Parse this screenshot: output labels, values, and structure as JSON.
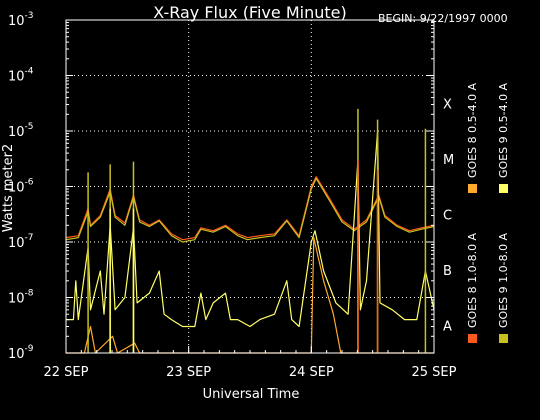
{
  "chart_data": {
    "type": "line",
    "title": "X-Ray Flux (Five Minute)",
    "begin_label": "BEGIN: 9/22/1997 0000",
    "xlabel": "Universal Time",
    "ylabel": "Watts meter2",
    "y_scale": "log",
    "ylim": [
      1e-09,
      0.001
    ],
    "x_range_days": [
      0,
      3
    ],
    "x_ticks": [
      {
        "day": 0,
        "label": "22 SEP"
      },
      {
        "day": 1,
        "label": "23 SEP"
      },
      {
        "day": 2,
        "label": "24 SEP"
      },
      {
        "day": 3,
        "label": "25 SEP"
      }
    ],
    "y_ticks": [
      {
        "exp": -9,
        "base": "10",
        "sup": "-9"
      },
      {
        "exp": -8,
        "base": "10",
        "sup": "-8"
      },
      {
        "exp": -7,
        "base": "10",
        "sup": "-7"
      },
      {
        "exp": -6,
        "base": "10",
        "sup": "-6"
      },
      {
        "exp": -5,
        "base": "10",
        "sup": "-5"
      },
      {
        "exp": -4,
        "base": "10",
        "sup": "-4"
      },
      {
        "exp": -3,
        "base": "10",
        "sup": "-3"
      }
    ],
    "flare_classes": [
      {
        "label": "A",
        "exp": -8.5
      },
      {
        "label": "B",
        "exp": -7.5
      },
      {
        "label": "C",
        "exp": -6.5
      },
      {
        "label": "M",
        "exp": -5.5
      },
      {
        "label": "X",
        "exp": -4.5
      }
    ],
    "grid": "dotted at 10^-8..10^-4 and at day boundaries",
    "legend_placement": "right, vertical",
    "series": [
      {
        "name": "GOES 8 1.0-8.0 A",
        "color": "#ff5a1e",
        "points": [
          [
            0.0,
            1.2e-07
          ],
          [
            0.1,
            1.3e-07
          ],
          [
            0.18,
            4e-07
          ],
          [
            0.2,
            2e-07
          ],
          [
            0.28,
            3e-07
          ],
          [
            0.36,
            9e-07
          ],
          [
            0.4,
            3e-07
          ],
          [
            0.48,
            2.2e-07
          ],
          [
            0.55,
            7e-07
          ],
          [
            0.6,
            2.5e-07
          ],
          [
            0.68,
            2e-07
          ],
          [
            0.76,
            2.5e-07
          ],
          [
            0.86,
            1.4e-07
          ],
          [
            0.95,
            1.1e-07
          ],
          [
            1.05,
            1.2e-07
          ],
          [
            1.1,
            1.8e-07
          ],
          [
            1.2,
            1.6e-07
          ],
          [
            1.3,
            2e-07
          ],
          [
            1.4,
            1.4e-07
          ],
          [
            1.48,
            1.2e-07
          ],
          [
            1.58,
            1.3e-07
          ],
          [
            1.7,
            1.4e-07
          ],
          [
            1.8,
            2.5e-07
          ],
          [
            1.9,
            1.3e-07
          ],
          [
            2.0,
            1e-06
          ],
          [
            2.04,
            1.5e-06
          ],
          [
            2.15,
            6e-07
          ],
          [
            2.25,
            2.5e-07
          ],
          [
            2.35,
            1.7e-07
          ],
          [
            2.45,
            2.5e-07
          ],
          [
            2.55,
            7e-07
          ],
          [
            2.6,
            3e-07
          ],
          [
            2.7,
            2e-07
          ],
          [
            2.8,
            1.6e-07
          ],
          [
            2.9,
            1.8e-07
          ],
          [
            3.0,
            2e-07
          ]
        ]
      },
      {
        "name": "GOES 8 0.5-4.0 A",
        "color": "#ffaa2a",
        "points": [
          [
            0.0,
            1e-09
          ],
          [
            0.15,
            1e-09
          ],
          [
            0.2,
            3e-09
          ],
          [
            0.24,
            1e-09
          ],
          [
            0.38,
            2e-09
          ],
          [
            0.42,
            1e-09
          ],
          [
            0.56,
            1.5e-09
          ],
          [
            0.6,
            1e-09
          ],
          [
            2.0,
            1e-09
          ],
          [
            2.02,
            1.2e-07
          ],
          [
            2.05,
            6e-08
          ],
          [
            2.1,
            2e-08
          ],
          [
            2.18,
            5e-09
          ],
          [
            2.24,
            1e-09
          ],
          [
            3.0,
            1e-09
          ]
        ]
      },
      {
        "name": "GOES 9 1.0-8.0 A",
        "color": "#c8c020",
        "points": [
          [
            0.0,
            1.1e-07
          ],
          [
            0.1,
            1.2e-07
          ],
          [
            0.18,
            3.5e-07
          ],
          [
            0.2,
            1.9e-07
          ],
          [
            0.28,
            2.8e-07
          ],
          [
            0.36,
            8e-07
          ],
          [
            0.4,
            2.8e-07
          ],
          [
            0.48,
            2e-07
          ],
          [
            0.55,
            6.5e-07
          ],
          [
            0.6,
            2.3e-07
          ],
          [
            0.68,
            1.9e-07
          ],
          [
            0.76,
            2.4e-07
          ],
          [
            0.86,
            1.3e-07
          ],
          [
            0.95,
            1e-07
          ],
          [
            1.05,
            1.1e-07
          ],
          [
            1.1,
            1.7e-07
          ],
          [
            1.2,
            1.5e-07
          ],
          [
            1.3,
            1.9e-07
          ],
          [
            1.4,
            1.3e-07
          ],
          [
            1.48,
            1.1e-07
          ],
          [
            1.58,
            1.2e-07
          ],
          [
            1.7,
            1.3e-07
          ],
          [
            1.8,
            2.4e-07
          ],
          [
            1.9,
            1.2e-07
          ],
          [
            2.0,
            9e-07
          ],
          [
            2.04,
            1.4e-06
          ],
          [
            2.15,
            5.5e-07
          ],
          [
            2.25,
            2.3e-07
          ],
          [
            2.35,
            1.6e-07
          ],
          [
            2.45,
            2.3e-07
          ],
          [
            2.55,
            6.5e-07
          ],
          [
            2.6,
            2.8e-07
          ],
          [
            2.7,
            1.9e-07
          ],
          [
            2.8,
            1.5e-07
          ],
          [
            2.9,
            1.7e-07
          ],
          [
            3.0,
            1.9e-07
          ]
        ]
      },
      {
        "name": "GOES 9 0.5-4.0 A",
        "color": "#ffff66",
        "points": [
          [
            0.0,
            4e-09
          ],
          [
            0.06,
            4e-09
          ],
          [
            0.08,
            2e-08
          ],
          [
            0.1,
            4e-09
          ],
          [
            0.18,
            8e-08
          ],
          [
            0.2,
            6e-09
          ],
          [
            0.28,
            3e-08
          ],
          [
            0.31,
            5e-09
          ],
          [
            0.36,
            2e-07
          ],
          [
            0.4,
            6e-09
          ],
          [
            0.48,
            1e-08
          ],
          [
            0.55,
            1.8e-07
          ],
          [
            0.58,
            8e-09
          ],
          [
            0.68,
            1.2e-08
          ],
          [
            0.76,
            3e-08
          ],
          [
            0.8,
            5e-09
          ],
          [
            0.86,
            4e-09
          ],
          [
            0.95,
            3e-09
          ],
          [
            1.05,
            3e-09
          ],
          [
            1.1,
            1.2e-08
          ],
          [
            1.14,
            4e-09
          ],
          [
            1.2,
            8e-09
          ],
          [
            1.3,
            1.2e-08
          ],
          [
            1.34,
            4e-09
          ],
          [
            1.4,
            4e-09
          ],
          [
            1.5,
            3e-09
          ],
          [
            1.58,
            4e-09
          ],
          [
            1.7,
            5e-09
          ],
          [
            1.8,
            2e-08
          ],
          [
            1.84,
            4e-09
          ],
          [
            1.9,
            3e-09
          ],
          [
            2.0,
            1e-07
          ],
          [
            2.03,
            1.6e-07
          ],
          [
            2.1,
            3e-08
          ],
          [
            2.2,
            8e-09
          ],
          [
            2.3,
            5e-09
          ],
          [
            2.38,
            3e-06
          ],
          [
            2.4,
            6e-09
          ],
          [
            2.45,
            2e-08
          ],
          [
            2.54,
            1e-05
          ],
          [
            2.56,
            8e-09
          ],
          [
            2.66,
            6e-09
          ],
          [
            2.76,
            4e-09
          ],
          [
            2.86,
            4e-09
          ],
          [
            2.93,
            3e-08
          ],
          [
            3.0,
            6e-09
          ]
        ]
      }
    ],
    "spikes": [
      {
        "series": 2,
        "day": 0.18,
        "value": 1.8e-06
      },
      {
        "series": 2,
        "day": 0.36,
        "value": 2.5e-06
      },
      {
        "series": 2,
        "day": 0.55,
        "value": 2.8e-06
      },
      {
        "series": 3,
        "day": 0.36,
        "value": 4e-07
      },
      {
        "series": 3,
        "day": 0.55,
        "value": 4e-07
      },
      {
        "series": 2,
        "day": 2.38,
        "value": 2.5e-05
      },
      {
        "series": 2,
        "day": 2.54,
        "value": 1.6e-05
      },
      {
        "series": 2,
        "day": 2.93,
        "value": 1.1e-05
      },
      {
        "series": 0,
        "day": 2.38,
        "value": 3e-06
      },
      {
        "series": 0,
        "day": 2.54,
        "value": 2e-06
      }
    ]
  }
}
